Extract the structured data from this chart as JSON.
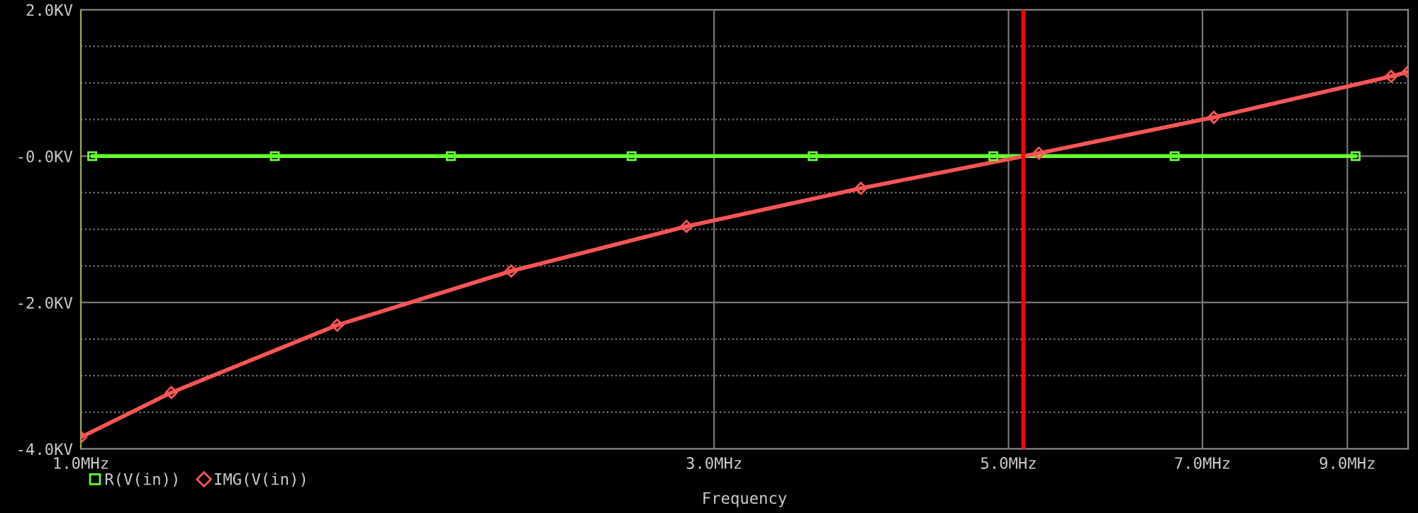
{
  "chart_data": {
    "type": "line",
    "xlabel": "Frequency",
    "log": "x",
    "xlim": [
      1,
      10
    ],
    "ylim": [
      -4,
      2
    ],
    "xticks": [
      {
        "value": 1,
        "label": "1.0MHz"
      },
      {
        "value": 3,
        "label": "3.0MHz"
      },
      {
        "value": 5,
        "label": "5.0MHz"
      },
      {
        "value": 7,
        "label": "7.0MHz"
      },
      {
        "value": 9,
        "label": "9.0MHz"
      }
    ],
    "yticks": [
      {
        "value": -4,
        "label": "-4.0KV"
      },
      {
        "value": -3.5,
        "label": null
      },
      {
        "value": -3,
        "label": null
      },
      {
        "value": -2.5,
        "label": null
      },
      {
        "value": -2,
        "label": "-2.0KV"
      },
      {
        "value": -1.5,
        "label": null
      },
      {
        "value": -1,
        "label": null
      },
      {
        "value": -0.5,
        "label": null
      },
      {
        "value": 0,
        "label": "-0.0KV"
      },
      {
        "value": 0.5,
        "label": null
      },
      {
        "value": 1,
        "label": null
      },
      {
        "value": 1.5,
        "label": null
      },
      {
        "value": 2,
        "label": "2.0KV"
      }
    ],
    "grid": true,
    "legend": "bottom left",
    "line_style": "solid",
    "series": [
      {
        "name": "R(V(in))",
        "color": "#66ff33",
        "marker": "square",
        "x": [
          1.02,
          1.4,
          1.9,
          2.6,
          3.56,
          4.87,
          6.67,
          9.13
        ],
        "values": [
          0,
          0,
          0,
          0,
          0,
          0,
          0,
          0
        ]
      },
      {
        "name": "IMG(V(in))",
        "color": "#ff5555",
        "marker": "diamond",
        "x": [
          1,
          1.17,
          1.56,
          2.11,
          2.86,
          3.87,
          5.27,
          7.14,
          9.71,
          10
        ],
        "values": [
          -3.84,
          -3.23,
          -2.31,
          -1.57,
          -0.96,
          -0.44,
          0.04,
          0.53,
          1.09,
          1.15
        ]
      }
    ],
    "ref_lines": [
      {
        "axis": "x",
        "value": 5.13,
        "color": "#ff0000",
        "line_style": "solid"
      }
    ]
  }
}
